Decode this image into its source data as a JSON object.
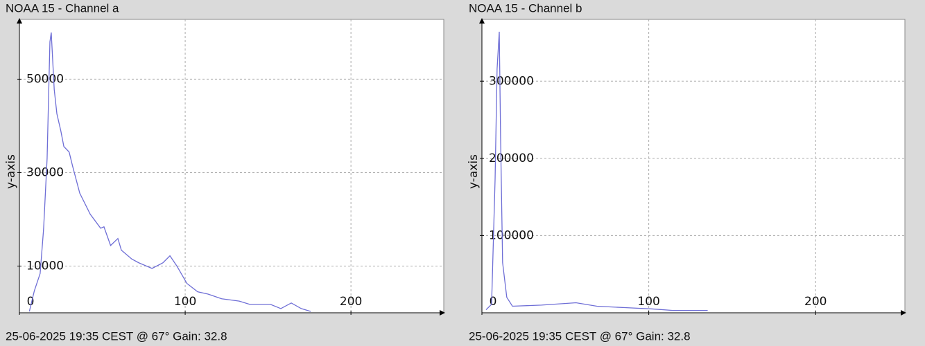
{
  "chart_data": [
    {
      "type": "line",
      "title": "NOAA 15 - Channel a",
      "footer": "25-06-2025 19:35 CEST @ 67° Gain: 32.8",
      "y_label": "y-axis",
      "xlim": [
        0,
        256
      ],
      "ylim": [
        0,
        62800
      ],
      "xticks": [
        0,
        100,
        200
      ],
      "yticks": [
        10000,
        30000,
        50000
      ],
      "grid": true,
      "series": [
        {
          "color": "#6e6ed6",
          "x": [
            6,
            9,
            12.5,
            14.6,
            16.7,
            18.4,
            19.2,
            21,
            22.6,
            25,
            26.8,
            30,
            32,
            36.4,
            42.7,
            49,
            51,
            55,
            59.4,
            61.5,
            67.8,
            72,
            80,
            86.6,
            90.8,
            95,
            101,
            107.5,
            113.8,
            122,
            132.6,
            139,
            151.5,
            157.7,
            164,
            170,
            175.7
          ],
          "values": [
            300,
            4700,
            8400,
            18000,
            33000,
            58000,
            60000,
            47800,
            42600,
            38900,
            35600,
            34400,
            31500,
            25600,
            21100,
            18100,
            18400,
            14400,
            15900,
            13400,
            11500,
            10700,
            9500,
            10700,
            12200,
            10000,
            6300,
            4500,
            4000,
            3000,
            2500,
            1800,
            1800,
            900,
            2100,
            900,
            300
          ]
        }
      ]
    },
    {
      "type": "line",
      "title": "NOAA 15 - Channel b",
      "footer": "25-06-2025 19:35 CEST @ 67° Gain: 32.8",
      "y_label": "y-axis",
      "xlim": [
        0,
        253.5
      ],
      "ylim": [
        0,
        380000
      ],
      "xticks": [
        0,
        100,
        200
      ],
      "yticks": [
        100000,
        200000,
        300000
      ],
      "grid": true,
      "series": [
        {
          "color": "#6e6ed6",
          "x": [
            2.5,
            5.8,
            7.9,
            9.1,
            10.4,
            11.2,
            12.4,
            14.9,
            18.3,
            35.7,
            56.4,
            68.9,
            85.5,
            102,
            114.5,
            135.3
          ],
          "values": [
            4000,
            11000,
            173000,
            316000,
            364000,
            226000,
            65000,
            20000,
            8500,
            10000,
            13000,
            8500,
            6700,
            5000,
            3000,
            3000
          ]
        }
      ]
    }
  ]
}
